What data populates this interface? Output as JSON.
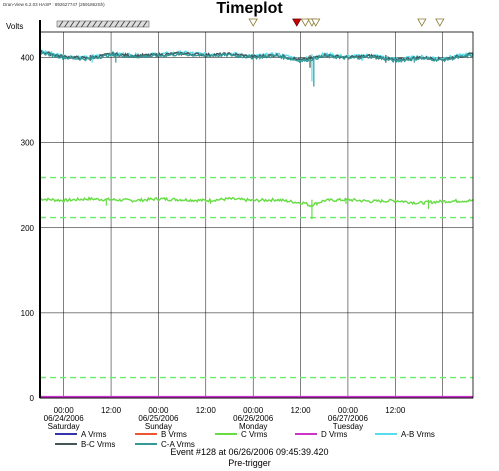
{
  "app": {
    "header_text": "Dran-View 6.2.03 HASP : 892627747 (2691862Sh)"
  },
  "chart_data": {
    "type": "line",
    "title": "Timeplot",
    "ylabel": "Volts",
    "ylim": [
      0,
      430
    ],
    "yticks": [
      0,
      100,
      200,
      300,
      400
    ],
    "xlim": [
      -0.25,
      4.32
    ],
    "x_unit": "days from 06/24/2006 00:00",
    "xticks": [
      {
        "x": 0.0,
        "l1": "00:00",
        "l2": "06/24/2006",
        "l3": "Saturday"
      },
      {
        "x": 0.5,
        "l1": "12:00",
        "l2": "",
        "l3": ""
      },
      {
        "x": 1.0,
        "l1": "00:00",
        "l2": "06/25/2006",
        "l3": "Sunday"
      },
      {
        "x": 1.5,
        "l1": "12:00",
        "l2": "",
        "l3": ""
      },
      {
        "x": 2.0,
        "l1": "00:00",
        "l2": "06/26/2006",
        "l3": "Monday"
      },
      {
        "x": 2.5,
        "l1": "12:00",
        "l2": "",
        "l3": ""
      },
      {
        "x": 3.0,
        "l1": "00:00",
        "l2": "06/27/2006",
        "l3": "Tuesday"
      },
      {
        "x": 3.5,
        "l1": "12:00",
        "l2": "",
        "l3": ""
      },
      {
        "x": 4.0,
        "l1": "",
        "l2": "",
        "l3": ""
      }
    ],
    "thresholds": [
      259,
      212,
      24
    ],
    "threshold_color": "#66ee66",
    "markers": [
      {
        "x": 2.0,
        "color": "#ffffff",
        "stroke": "#8a7a30"
      },
      {
        "x": 2.46,
        "color": "#cc0000",
        "stroke": "#660000"
      },
      {
        "x": 2.55,
        "color": "#ffffff",
        "stroke": "#8a7a30"
      },
      {
        "x": 2.62,
        "color": "#ffffff",
        "stroke": "#8a7a30"
      },
      {
        "x": 2.66,
        "color": "#ffffff",
        "stroke": "#8a7a30"
      },
      {
        "x": 3.78,
        "color": "#ffffff",
        "stroke": "#8a7a30"
      },
      {
        "x": 3.97,
        "color": "#ffffff",
        "stroke": "#8a7a30"
      }
    ],
    "series": [
      {
        "name": "A Vrms",
        "color": "#3333aa",
        "base": 0.5,
        "points": [
          [
            -0.25,
            0.5
          ],
          [
            4.32,
            0.5
          ]
        ]
      },
      {
        "name": "B Vrms",
        "color": "#ee5533",
        "base": 1,
        "points": [
          [
            -0.25,
            1
          ],
          [
            4.32,
            1
          ]
        ]
      },
      {
        "name": "C Vrms",
        "color": "#66dd44",
        "base": 233,
        "points": [
          [
            -0.25,
            234
          ],
          [
            0.0,
            232
          ],
          [
            0.25,
            234
          ],
          [
            0.5,
            233
          ],
          [
            0.75,
            232
          ],
          [
            1.0,
            234
          ],
          [
            1.25,
            233
          ],
          [
            1.5,
            232
          ],
          [
            1.75,
            234
          ],
          [
            2.0,
            232
          ],
          [
            2.25,
            233
          ],
          [
            2.45,
            230
          ],
          [
            2.55,
            229
          ],
          [
            2.6,
            226
          ],
          [
            2.75,
            232
          ],
          [
            3.0,
            233
          ],
          [
            3.25,
            231
          ],
          [
            3.5,
            232
          ],
          [
            3.75,
            229
          ],
          [
            4.0,
            231
          ],
          [
            4.32,
            232
          ]
        ],
        "spikes": [
          [
            0.45,
            226
          ],
          [
            1.55,
            228
          ],
          [
            2.62,
            210
          ],
          [
            2.98,
            228
          ],
          [
            3.85,
            222
          ]
        ]
      },
      {
        "name": "D Vrms",
        "color": "#cc33cc",
        "base": 1.5,
        "points": [
          [
            -0.25,
            1.5
          ],
          [
            4.32,
            1.5
          ]
        ]
      },
      {
        "name": "A-B Vrms",
        "color": "#55ddee",
        "base": 404,
        "points": [
          [
            -0.25,
            408
          ],
          [
            0.0,
            402
          ],
          [
            0.25,
            400
          ],
          [
            0.5,
            405
          ],
          [
            0.75,
            403
          ],
          [
            1.0,
            404
          ],
          [
            1.25,
            406
          ],
          [
            1.5,
            404
          ],
          [
            1.75,
            405
          ],
          [
            2.0,
            402
          ],
          [
            2.25,
            404
          ],
          [
            2.5,
            398
          ],
          [
            2.62,
            400
          ],
          [
            2.75,
            404
          ],
          [
            3.0,
            401
          ],
          [
            3.25,
            403
          ],
          [
            3.5,
            398
          ],
          [
            3.75,
            401
          ],
          [
            4.0,
            399
          ],
          [
            4.32,
            405
          ]
        ],
        "spikes": [
          [
            0.3,
            394
          ],
          [
            2.62,
            372
          ],
          [
            3.15,
            396
          ]
        ]
      },
      {
        "name": "B-C Vrms",
        "color": "#445555",
        "base": 403,
        "points": [
          [
            -0.25,
            407
          ],
          [
            0.0,
            401
          ],
          [
            0.25,
            399
          ],
          [
            0.5,
            404
          ],
          [
            0.75,
            402
          ],
          [
            1.0,
            403
          ],
          [
            1.25,
            405
          ],
          [
            1.5,
            403
          ],
          [
            1.75,
            404
          ],
          [
            2.0,
            401
          ],
          [
            2.25,
            403
          ],
          [
            2.5,
            397
          ],
          [
            2.62,
            399
          ],
          [
            2.75,
            403
          ],
          [
            3.0,
            400
          ],
          [
            3.25,
            402
          ],
          [
            3.5,
            397
          ],
          [
            3.75,
            400
          ],
          [
            4.0,
            398
          ],
          [
            4.32,
            404
          ]
        ],
        "spikes": [
          [
            0.28,
            396
          ],
          [
            2.6,
            388
          ],
          [
            3.4,
            394
          ]
        ]
      },
      {
        "name": "C-A Vrms",
        "color": "#339999",
        "base": 402,
        "points": [
          [
            -0.25,
            406
          ],
          [
            0.0,
            400
          ],
          [
            0.25,
            398
          ],
          [
            0.5,
            403
          ],
          [
            0.75,
            401
          ],
          [
            1.0,
            402
          ],
          [
            1.25,
            404
          ],
          [
            1.5,
            402
          ],
          [
            1.75,
            403
          ],
          [
            2.0,
            400
          ],
          [
            2.25,
            402
          ],
          [
            2.5,
            396
          ],
          [
            2.62,
            398
          ],
          [
            2.75,
            402
          ],
          [
            3.0,
            399
          ],
          [
            3.25,
            401
          ],
          [
            3.5,
            396
          ],
          [
            3.75,
            399
          ],
          [
            4.0,
            397
          ],
          [
            4.32,
            403
          ]
        ],
        "spikes": [
          [
            0.55,
            394
          ],
          [
            2.64,
            366
          ],
          [
            3.7,
            394
          ]
        ]
      }
    ],
    "event": {
      "line1": "Event #128 at 06/26/2006 09:45:39.420",
      "line2": "Pre-trigger"
    }
  }
}
